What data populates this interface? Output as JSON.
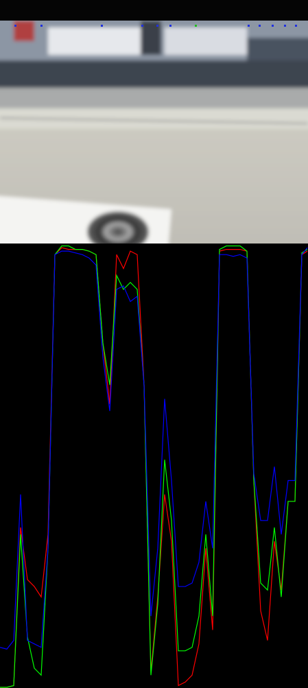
{
  "chart_data": {
    "type": "line",
    "x": [
      0,
      10,
      20,
      30,
      40,
      50,
      60,
      70,
      80,
      90,
      100,
      110,
      120,
      130,
      140,
      150,
      160,
      170,
      180,
      190,
      200,
      210,
      220,
      230,
      240,
      250,
      260,
      270,
      280,
      290,
      300,
      310,
      320,
      330,
      340,
      350,
      360,
      370,
      380,
      390,
      400,
      410,
      420,
      430,
      440,
      448
    ],
    "xlim": [
      0,
      448
    ],
    "ylim": [
      0,
      255
    ],
    "series": [
      {
        "color": "#ff0000",
        "values": [
          0,
          0,
          1,
          92,
          62,
          58,
          52,
          88,
          249,
          253,
          252,
          252,
          252,
          251,
          249,
          198,
          163,
          249,
          241,
          251,
          249,
          174,
          9,
          52,
          111,
          84,
          1,
          3,
          7,
          25,
          80,
          33,
          251,
          252,
          252,
          252,
          251,
          119,
          44,
          27,
          84,
          56,
          107,
          107,
          249,
          251
        ]
      },
      {
        "color": "#00ff00",
        "values": [
          0,
          0,
          1,
          88,
          29,
          11,
          7,
          80,
          249,
          254,
          254,
          252,
          252,
          251,
          249,
          198,
          174,
          237,
          229,
          233,
          229,
          174,
          7,
          48,
          131,
          96,
          21,
          21,
          23,
          41,
          88,
          41,
          252,
          254,
          254,
          254,
          251,
          119,
          60,
          56,
          92,
          52,
          107,
          107,
          250,
          252
        ]
      },
      {
        "color": "#0000ff",
        "values": [
          23,
          22,
          27,
          111,
          27,
          25,
          23,
          80,
          249,
          251,
          251,
          250,
          249,
          247,
          243,
          190,
          159,
          229,
          231,
          222,
          225,
          174,
          41,
          80,
          166,
          119,
          58,
          58,
          60,
          72,
          107,
          80,
          249,
          249,
          248,
          249,
          247,
          123,
          96,
          96,
          127,
          88,
          119,
          119,
          249,
          253
        ]
      }
    ]
  }
}
